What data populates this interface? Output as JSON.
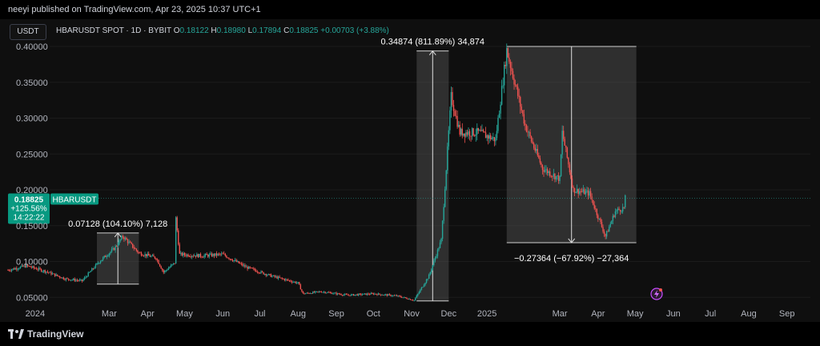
{
  "header": {
    "published_text": "neeyi published on TradingView.com, Apr 23, 2025 10:37 UTC+1"
  },
  "toolbar": {
    "currency": "USDT"
  },
  "legend": {
    "symbol": "HBARUSDT SPOT · 1D · BYBIT",
    "open_label": "O",
    "open": "0.18122",
    "high_label": "H",
    "high": "0.18980",
    "low_label": "L",
    "low": "0.17894",
    "close_label": "C",
    "close": "0.18825",
    "change": "+0.00703 (+3.88%)"
  },
  "price_tag": {
    "price": "0.18825",
    "pct": "+125.56%",
    "countdown": "14:22:22",
    "symbol": "HBARUSDT"
  },
  "footer": {
    "brand": "TradingView"
  },
  "colors": {
    "up": "#26a69a",
    "down": "#ef5350",
    "background": "#0f0f0f",
    "axis_text": "#b2b5be",
    "measure_box": "#4a4a4a",
    "price_tag": "#089981"
  },
  "chart_data": {
    "type": "candlestick",
    "title": "HBARUSDT SPOT · 1D · BYBIT",
    "y_ticks": [
      "0.40000",
      "0.35000",
      "0.30000",
      "0.25000",
      "0.20000",
      "0.15000",
      "0.10000",
      "0.05000"
    ],
    "y_tick_values": [
      0.4,
      0.35,
      0.3,
      0.25,
      0.2,
      0.15,
      0.1,
      0.05
    ],
    "ylim": [
      0.038,
      0.4
    ],
    "x_ticks": [
      "2024",
      "Mar",
      "Apr",
      "May",
      "Jun",
      "Jul",
      "Aug",
      "Sep",
      "Oct",
      "Nov",
      "Dec",
      "2025",
      "Mar",
      "Apr",
      "May",
      "Jun",
      "Jul",
      "Aug",
      "Sep"
    ],
    "x_tick_dates": [
      "2024-01-01",
      "2024-03-01",
      "2024-04-01",
      "2024-05-01",
      "2024-06-01",
      "2024-07-01",
      "2024-08-01",
      "2024-09-01",
      "2024-10-01",
      "2024-11-01",
      "2024-12-01",
      "2025-01-01",
      "2025-03-01",
      "2025-04-01",
      "2025-05-01",
      "2025-06-01",
      "2025-07-01",
      "2025-08-01",
      "2025-09-01"
    ],
    "xlim": [
      "2023-12-10",
      "2025-09-20"
    ],
    "price_path": [
      [
        "2023-12-10",
        0.088
      ],
      [
        "2023-12-25",
        0.094
      ],
      [
        "2024-01-10",
        0.086
      ],
      [
        "2024-01-25",
        0.076
      ],
      [
        "2024-02-08",
        0.073
      ],
      [
        "2024-02-22",
        0.1
      ],
      [
        "2024-03-05",
        0.118
      ],
      [
        "2024-03-12",
        0.135
      ],
      [
        "2024-03-25",
        0.112
      ],
      [
        "2024-04-08",
        0.105
      ],
      [
        "2024-04-14",
        0.085
      ],
      [
        "2024-04-23",
        0.098
      ],
      [
        "2024-04-24",
        0.16
      ],
      [
        "2024-04-27",
        0.11
      ],
      [
        "2024-05-15",
        0.108
      ],
      [
        "2024-06-01",
        0.11
      ],
      [
        "2024-06-20",
        0.092
      ],
      [
        "2024-07-10",
        0.08
      ],
      [
        "2024-08-01",
        0.07
      ],
      [
        "2024-08-05",
        0.055
      ],
      [
        "2024-08-20",
        0.058
      ],
      [
        "2024-09-10",
        0.053
      ],
      [
        "2024-10-01",
        0.055
      ],
      [
        "2024-10-20",
        0.052
      ],
      [
        "2024-11-03",
        0.046
      ],
      [
        "2024-11-15",
        0.08
      ],
      [
        "2024-11-25",
        0.13
      ],
      [
        "2024-12-03",
        0.33
      ],
      [
        "2024-12-10",
        0.28
      ],
      [
        "2024-12-25",
        0.28
      ],
      [
        "2025-01-08",
        0.27
      ],
      [
        "2025-01-17",
        0.395
      ],
      [
        "2025-02-01",
        0.29
      ],
      [
        "2025-02-15",
        0.23
      ],
      [
        "2025-03-01",
        0.215
      ],
      [
        "2025-03-03",
        0.28
      ],
      [
        "2025-03-12",
        0.2
      ],
      [
        "2025-03-25",
        0.195
      ],
      [
        "2025-04-07",
        0.135
      ],
      [
        "2025-04-15",
        0.17
      ],
      [
        "2025-04-22",
        0.175
      ],
      [
        "2025-04-23",
        0.188
      ]
    ],
    "annotations": [
      {
        "label": "0.07128 (104.10%) 7,128",
        "from_date": "2024-02-20",
        "to_date": "2024-03-25",
        "from_price": 0.0685,
        "to_price": 0.1398,
        "direction": "up"
      },
      {
        "label": "0.34874 (811.89%) 34,874",
        "from_date": "2024-11-05",
        "to_date": "2024-12-01",
        "from_price": 0.045,
        "to_price": 0.3937,
        "direction": "up"
      },
      {
        "label": "−0.27364 (−67.92%) −27,364",
        "from_date": "2025-01-17",
        "to_date": "2025-05-02",
        "from_price": 0.4,
        "to_price": 0.1263,
        "direction": "down"
      }
    ],
    "current_price": 0.18825
  }
}
